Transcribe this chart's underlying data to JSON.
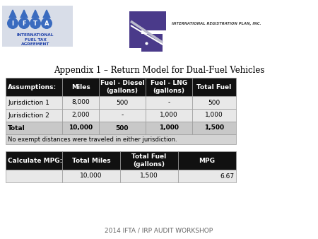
{
  "title": "Appendix 1 – Return Model for Dual-Fuel Vehicles",
  "footer": "2014 IFTA / IRP AUDIT WORKSHOP",
  "table1_rows": [
    [
      "Jurisdiction 1",
      "8,000",
      "500",
      "-",
      "500"
    ],
    [
      "Jurisdiction 2",
      "2,000",
      "-",
      "1,000",
      "1,000"
    ],
    [
      "Total",
      "10,000",
      "500",
      "1,000",
      "1,500"
    ]
  ],
  "table1_note": "No exempt distances were traveled in either jurisdiction.",
  "table2_header": [
    "Calculate MPG:",
    "Total Miles",
    "Total Fuel\n(gallons)",
    "MPG"
  ],
  "table2_row": [
    "",
    "10,000",
    "1,500",
    "6.67"
  ],
  "header_bg": "#111111",
  "header_fg": "#ffffff",
  "total_bg": "#c8c8c8",
  "row_bg": "#e8e8e8",
  "note_bg": "#d4d4d4",
  "border_color": "#999999",
  "title_fontsize": 8.5,
  "table_fontsize": 6.5,
  "footer_fontsize": 6.5,
  "ifta_blue": "#3a6bbf",
  "ifta_text_color": "#2244aa",
  "irp_purple": "#4a3a8a",
  "irp_text_color": "#555555"
}
